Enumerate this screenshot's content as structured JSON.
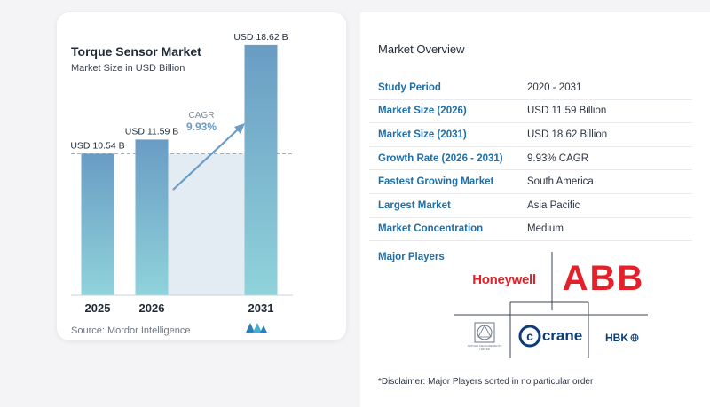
{
  "chart": {
    "title": "Torque Sensor Market",
    "subtitle": "Market Size in USD Billion",
    "source": "Source:  Mordor Intelligence",
    "cagr_label": "CAGR",
    "cagr_value": "9.93%"
  },
  "chart_data": {
    "type": "bar",
    "title": "Torque Sensor Market",
    "subtitle": "Market Size in USD Billion",
    "categories": [
      "2025",
      "2026",
      "2031"
    ],
    "values": [
      10.54,
      11.59,
      18.62
    ],
    "data_labels": [
      "USD 10.54 B",
      "USD 11.59 B",
      "USD 18.62 B"
    ],
    "ylim": [
      0,
      20
    ],
    "grid": false,
    "annotation": "CAGR 9.93%"
  },
  "overview": {
    "title": "Market Overview",
    "rows": [
      {
        "key": "Study Period",
        "value": "2020 - 2031"
      },
      {
        "key": "Market Size (2026)",
        "value": "USD 11.59 Billion"
      },
      {
        "key": "Market Size (2031)",
        "value": "USD 18.62 Billion"
      },
      {
        "key": "Growth Rate (2026 - 2031)",
        "value": "9.93% CAGR"
      },
      {
        "key": "Fastest Growing Market",
        "value": "South America"
      },
      {
        "key": "Largest Market",
        "value": "Asia Pacific"
      },
      {
        "key": "Market Concentration",
        "value": "Medium"
      }
    ]
  },
  "players": {
    "title": "Major Players",
    "logos": {
      "honeywell": "Honeywell",
      "abb": "ABB",
      "applied": "APPLIED MEASUREMENTS LIMITED",
      "crane": "crane",
      "hbk": "HBK"
    },
    "disclaimer": "*Disclaimer: Major Players sorted in no particular order"
  },
  "colors": {
    "bar_top": "#6a9cc4",
    "bar_bottom": "#8fd3da",
    "accent": "#1e6fa8",
    "honeywell": "#e4202a",
    "abb": "#e4202a"
  }
}
